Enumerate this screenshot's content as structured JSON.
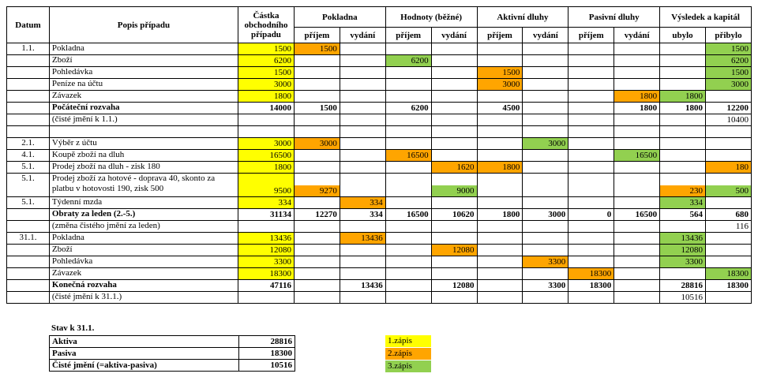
{
  "colors": {
    "yellow": "#ffff00",
    "orange": "#ffa500",
    "green": "#92d050"
  },
  "table": {
    "header": {
      "datum": "Datum",
      "popis": "Popis případu",
      "castka": "Částka obchodního případu",
      "groups": [
        {
          "label": "Pokladna",
          "sub1": "příjem",
          "sub2": "vydání"
        },
        {
          "label": "Hodnoty (běžné)",
          "sub1": "příjem",
          "sub2": "vydání"
        },
        {
          "label": "Aktivní dluhy",
          "sub1": "příjem",
          "sub2": "vydání"
        },
        {
          "label": "Pasivní dluhy",
          "sub1": "příjem",
          "sub2": "vydání"
        },
        {
          "label": "Výsledek a kapitál",
          "sub1": "ubylo",
          "sub2": "přibylo"
        }
      ]
    },
    "rows": [
      {
        "datum": "1.1.",
        "popis": "Pokladna",
        "cells": {
          "0": [
            "1500",
            "yellow"
          ],
          "1": [
            "1500",
            "orange"
          ],
          "10": [
            "1500",
            "green"
          ]
        }
      },
      {
        "popis": "Zboží",
        "cells": {
          "0": [
            "6200",
            "yellow"
          ],
          "3": [
            "6200",
            "green"
          ],
          "10": [
            "6200",
            "green"
          ]
        }
      },
      {
        "popis": "Pohledávka",
        "cells": {
          "0": [
            "1500",
            "yellow"
          ],
          "5": [
            "1500",
            "orange"
          ],
          "10": [
            "1500",
            "green"
          ]
        }
      },
      {
        "popis": "Peníze na účtu",
        "cells": {
          "0": [
            "3000",
            "yellow"
          ],
          "5": [
            "3000",
            "orange"
          ],
          "10": [
            "3000",
            "green"
          ]
        }
      },
      {
        "popis": "Závazek",
        "cells": {
          "0": [
            "1800",
            "yellow"
          ],
          "8": [
            "1800",
            "orange"
          ],
          "9": [
            "1800",
            "green"
          ]
        }
      },
      {
        "popis": "Počáteční rozvaha",
        "bold": true,
        "cells": {
          "0": [
            "14000"
          ],
          "1": [
            "1500"
          ],
          "3": [
            "6200"
          ],
          "5": [
            "4500"
          ],
          "8": [
            "1800"
          ],
          "9": [
            "1800"
          ],
          "10": [
            "12200"
          ]
        }
      },
      {
        "popis": "(čisté jmění k 1.1.)",
        "cells": {
          "10": [
            "10400"
          ]
        }
      },
      {
        "cells": {}
      },
      {
        "datum": "2.1.",
        "popis": "Výběr z účtu",
        "cells": {
          "0": [
            "3000",
            "yellow"
          ],
          "1": [
            "3000",
            "orange"
          ],
          "6": [
            "3000",
            "green"
          ]
        }
      },
      {
        "datum": "4.1.",
        "popis": "Koupě zboží na dluh",
        "cells": {
          "0": [
            "16500",
            "yellow"
          ],
          "3": [
            "16500",
            "orange"
          ],
          "8": [
            "16500",
            "green"
          ]
        }
      },
      {
        "datum": "5.1.",
        "popis": "Prodej zboží na dluh - zisk 180",
        "cells": {
          "0": [
            "1800",
            "yellow"
          ],
          "4": [
            "1620",
            "orange"
          ],
          "5": [
            "1800",
            "orange"
          ],
          "10": [
            "180",
            "orange"
          ]
        }
      },
      {
        "datum": "5.1.",
        "popis": "Prodej zboží za hotové - doprava 40, skonto za platbu v hotovosti 190, zisk 500",
        "tall": true,
        "cells": {
          "0": [
            "9500",
            "yellow"
          ],
          "1": [
            "9270",
            "orange",
            "line"
          ],
          "4": [
            "9000",
            "green",
            "line"
          ],
          "9": [
            "230",
            "orange",
            "line"
          ],
          "10": [
            "500",
            "green",
            "line"
          ]
        }
      },
      {
        "datum": "5.1.",
        "popis": "Týdenní mzda",
        "cells": {
          "0": [
            "334",
            "yellow"
          ],
          "2": [
            "334",
            "orange"
          ],
          "9": [
            "334",
            "green"
          ]
        }
      },
      {
        "popis": "Obraty za leden (2.-5.)",
        "bold": true,
        "cells": {
          "0": [
            "31134"
          ],
          "1": [
            "12270"
          ],
          "2": [
            "334"
          ],
          "3": [
            "16500"
          ],
          "4": [
            "10620"
          ],
          "5": [
            "1800"
          ],
          "6": [
            "3000"
          ],
          "7": [
            "0"
          ],
          "8": [
            "16500"
          ],
          "9": [
            "564"
          ],
          "10": [
            "680"
          ]
        }
      },
      {
        "popis": "(změna čistého jmění za leden)",
        "cells": {
          "10": [
            "116"
          ]
        }
      },
      {
        "datum": "31.1.",
        "popis": "Pokladna",
        "cells": {
          "0": [
            "13436",
            "yellow"
          ],
          "2": [
            "13436",
            "orange"
          ],
          "9": [
            "13436",
            "green"
          ]
        }
      },
      {
        "popis": "Zboží",
        "cells": {
          "0": [
            "12080",
            "yellow"
          ],
          "4": [
            "12080",
            "orange"
          ],
          "9": [
            "12080",
            "green"
          ]
        }
      },
      {
        "popis": "Pohledávka",
        "cells": {
          "0": [
            "3300",
            "yellow"
          ],
          "6": [
            "3300",
            "orange"
          ],
          "9": [
            "3300",
            "green"
          ]
        }
      },
      {
        "popis": "Závazek",
        "cells": {
          "0": [
            "18300",
            "yellow"
          ],
          "7": [
            "18300",
            "orange"
          ],
          "10": [
            "18300",
            "green"
          ]
        }
      },
      {
        "popis": "Konečná rozvaha",
        "bold": true,
        "cells": {
          "0": [
            "47116"
          ],
          "2": [
            "13436"
          ],
          "4": [
            "12080"
          ],
          "6": [
            "3300"
          ],
          "7": [
            "18300"
          ],
          "9": [
            "28816"
          ],
          "10": [
            "18300"
          ]
        }
      },
      {
        "popis": "(čisté jmění k 31.1.)",
        "cells": {
          "9": [
            "10516"
          ]
        }
      }
    ]
  },
  "summary": {
    "title": "Stav k 31.1.",
    "rows": [
      {
        "label": "Aktiva",
        "value": "28816"
      },
      {
        "label": "Pasiva",
        "value": "18300"
      },
      {
        "label": "Čisté jmění (=aktiva-pasiva)",
        "value": "10516"
      }
    ]
  },
  "legend": [
    {
      "label": "1.zápis",
      "color": "yellow"
    },
    {
      "label": "2.zápis",
      "color": "orange"
    },
    {
      "label": "3.zápis",
      "color": "green"
    }
  ]
}
